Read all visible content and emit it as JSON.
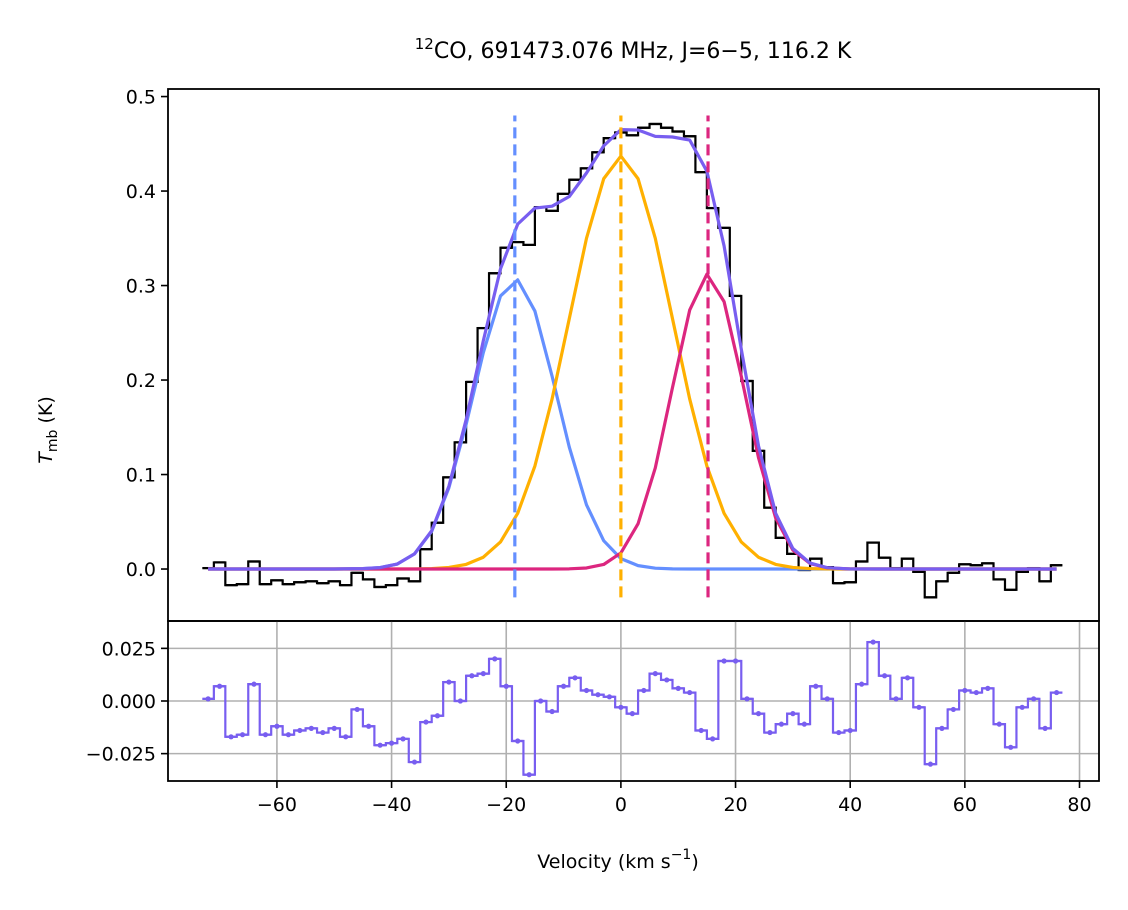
{
  "chart_data": [
    {
      "type": "line",
      "title_sup": "12",
      "title": "CO, 691473.076 MHz, J=6−5, 116.2 K",
      "ylabel": "T",
      "ylabel_sub": "mb",
      "ylabel_rest": " (K)",
      "xlim": [
        -79,
        83.4
      ],
      "ylim": [
        -0.055,
        0.508
      ],
      "yticks": [
        {
          "value": 0,
          "label": "0.0"
        },
        0.1,
        0.2,
        0.3,
        0.4,
        0.5
      ],
      "grid": false,
      "series": [
        {
          "color": "#000000",
          "step": true,
          "x": [
            -72,
            -70,
            -68,
            -66,
            -64,
            -62,
            -60,
            -58,
            -56,
            -54,
            -52,
            -50,
            -48,
            -46,
            -44,
            -42,
            -40,
            -38,
            -36,
            -34,
            -32,
            -30,
            -28,
            -26,
            -24,
            -22,
            -20,
            -18,
            -16,
            -14,
            -12,
            -10,
            -8,
            -6,
            -4,
            -2,
            0,
            2,
            4,
            6,
            8,
            10,
            12,
            14,
            16,
            18,
            20,
            22,
            24,
            26,
            28,
            30,
            32,
            34,
            36,
            38,
            40,
            42,
            44,
            46,
            48,
            50,
            52,
            54,
            56,
            58,
            60,
            62,
            64,
            66,
            68,
            70,
            72,
            74,
            76
          ],
          "values": [
            0.001,
            0.007,
            -0.017,
            -0.016,
            0.008,
            -0.016,
            -0.012,
            -0.016,
            -0.014,
            -0.013,
            -0.015,
            -0.013,
            -0.017,
            -0.004,
            -0.011,
            -0.019,
            -0.017,
            -0.01,
            -0.013,
            0.021,
            0.049,
            0.097,
            0.134,
            0.198,
            0.255,
            0.313,
            0.34,
            0.346,
            0.343,
            0.383,
            0.379,
            0.397,
            0.412,
            0.424,
            0.441,
            0.456,
            0.462,
            0.459,
            0.467,
            0.471,
            0.467,
            0.463,
            0.458,
            0.42,
            0.382,
            0.361,
            0.289,
            0.199,
            0.125,
            0.065,
            0.033,
            0.016,
            -0.001,
            0.011,
            0.002,
            -0.015,
            -0.014,
            0.008,
            0.028,
            0.012,
            0.001,
            0.011,
            -0.003,
            -0.03,
            -0.013,
            -0.004,
            0.005,
            0.004,
            0.006,
            -0.011,
            -0.022,
            -0.003,
            0.001,
            -0.013,
            0.004
          ]
        },
        {
          "color": "#648fff",
          "x": [
            -72,
            -50,
            -45,
            -42,
            -39,
            -36,
            -33,
            -30,
            -27,
            -24,
            -21,
            -18,
            -15,
            -12,
            -9,
            -6,
            -3,
            0,
            3,
            6,
            9,
            12,
            15,
            18,
            21,
            24,
            27,
            30,
            33,
            36,
            40,
            45,
            50,
            76
          ],
          "values": [
            0,
            0,
            0.0004,
            0.0015,
            0.0053,
            0.016,
            0.04,
            0.086,
            0.153,
            0.229,
            0.289,
            0.306,
            0.273,
            0.204,
            0.129,
            0.068,
            0.03,
            0.011,
            0.0036,
            0.0009,
            0.0002,
            0,
            0,
            0,
            0,
            0,
            0,
            0,
            0,
            0,
            0,
            0,
            0,
            0
          ]
        },
        {
          "color": "#ffb000",
          "x": [
            -72,
            -50,
            -45,
            -42,
            -39,
            -36,
            -33,
            -30,
            -27,
            -24,
            -21,
            -18,
            -15,
            -12,
            -9,
            -6,
            -3,
            0,
            3,
            6,
            9,
            12,
            15,
            18,
            21,
            24,
            27,
            30,
            33,
            36,
            40,
            45,
            50,
            76
          ],
          "values": [
            0,
            0,
            0,
            0,
            0,
            0.0001,
            0.0005,
            0.0017,
            0.0049,
            0.0125,
            0.0287,
            0.059,
            0.109,
            0.18,
            0.265,
            0.35,
            0.413,
            0.437,
            0.413,
            0.35,
            0.265,
            0.18,
            0.109,
            0.059,
            0.0287,
            0.0125,
            0.0049,
            0.0017,
            0.0005,
            0.0001,
            0,
            0,
            0,
            0
          ]
        },
        {
          "color": "#dc267f",
          "x": [
            -72,
            -50,
            -45,
            -42,
            -39,
            -36,
            -33,
            -30,
            -27,
            -24,
            -21,
            -18,
            -15,
            -12,
            -9,
            -6,
            -3,
            0,
            3,
            6,
            9,
            12,
            15,
            18,
            21,
            24,
            27,
            30,
            33,
            36,
            40,
            45,
            50,
            76
          ],
          "values": [
            0,
            0,
            0,
            0,
            0,
            0,
            0,
            0,
            0,
            0,
            0,
            0,
            0,
            0,
            0.0002,
            0.0011,
            0.0048,
            0.017,
            0.048,
            0.107,
            0.192,
            0.274,
            0.312,
            0.283,
            0.204,
            0.118,
            0.054,
            0.02,
            0.0058,
            0.0013,
            0.0001,
            0,
            0,
            0
          ]
        },
        {
          "color": "#785ef0",
          "x": [
            -72,
            -50,
            -45,
            -42,
            -39,
            -36,
            -33,
            -30,
            -27,
            -24,
            -21,
            -18,
            -15,
            -12,
            -9,
            -6,
            -3,
            0,
            3,
            6,
            9,
            12,
            15,
            18,
            21,
            24,
            27,
            30,
            33,
            36,
            40,
            45,
            50,
            76
          ],
          "values": [
            0,
            0,
            0.0004,
            0.0015,
            0.0053,
            0.0161,
            0.0405,
            0.0877,
            0.1579,
            0.2415,
            0.3177,
            0.365,
            0.382,
            0.384,
            0.3942,
            0.4191,
            0.4478,
            0.465,
            0.4646,
            0.4579,
            0.4572,
            0.454,
            0.421,
            0.342,
            0.2327,
            0.1305,
            0.0589,
            0.0217,
            0.0063,
            0.0014,
            0.0001,
            0,
            0,
            0
          ]
        }
      ],
      "vline_span": [
        -0.03,
        0.48
      ],
      "vlines": [
        {
          "x": -18.5,
          "color": "#648fff"
        },
        {
          "x": 0,
          "color": "#ffb000"
        },
        {
          "x": 15.2,
          "color": "#dc267f"
        }
      ]
    },
    {
      "type": "line",
      "xlabel": "Velocity (km s",
      "xlabel_sup": "−1",
      "xlabel_rest": ")",
      "xlim": [
        -79,
        83.4
      ],
      "ylim": [
        -0.038,
        0.038
      ],
      "xticks": [
        {
          "value": -60,
          "label": "−60"
        },
        {
          "value": -40,
          "label": "−40"
        },
        {
          "value": -20,
          "label": "−20"
        },
        0,
        20,
        40,
        60,
        80
      ],
      "yticks": [
        {
          "value": -0.025,
          "label": "−0.025"
        },
        {
          "value": 0,
          "label": "0.000"
        },
        0.025
      ],
      "grid": true,
      "series": [
        {
          "color": "#785ef0",
          "step": true,
          "markers": true,
          "x": [
            -72,
            -70,
            -68,
            -66,
            -64,
            -62,
            -60,
            -58,
            -56,
            -54,
            -52,
            -50,
            -48,
            -46,
            -44,
            -42,
            -40,
            -38,
            -36,
            -34,
            -32,
            -30,
            -28,
            -26,
            -24,
            -22,
            -20,
            -18,
            -16,
            -14,
            -12,
            -10,
            -8,
            -6,
            -4,
            -2,
            0,
            2,
            4,
            6,
            8,
            10,
            12,
            14,
            16,
            18,
            20,
            22,
            24,
            26,
            28,
            30,
            32,
            34,
            36,
            38,
            40,
            42,
            44,
            46,
            48,
            50,
            52,
            54,
            56,
            58,
            60,
            62,
            64,
            66,
            68,
            70,
            72,
            74,
            76
          ],
          "values": [
            0.001,
            0.007,
            -0.017,
            -0.016,
            0.008,
            -0.016,
            -0.012,
            -0.016,
            -0.014,
            -0.013,
            -0.015,
            -0.013,
            -0.017,
            -0.004,
            -0.012,
            -0.021,
            -0.02,
            -0.018,
            -0.029,
            -0.01,
            -0.007,
            0.009,
            0.0,
            0.012,
            0.013,
            0.02,
            0.007,
            -0.019,
            -0.035,
            0.0,
            -0.005,
            0.007,
            0.011,
            0.005,
            0.003,
            0.002,
            -0.003,
            -0.006,
            0.005,
            0.013,
            0.01,
            0.006,
            0.004,
            -0.014,
            -0.018,
            0.019,
            0.019,
            0.001,
            -0.006,
            -0.015,
            -0.011,
            -0.006,
            -0.011,
            0.007,
            0.001,
            -0.015,
            -0.014,
            0.008,
            0.028,
            0.012,
            0.001,
            0.011,
            -0.003,
            -0.03,
            -0.013,
            -0.004,
            0.005,
            0.004,
            0.006,
            -0.011,
            -0.022,
            -0.003,
            0.001,
            -0.013,
            0.004
          ]
        }
      ]
    }
  ]
}
